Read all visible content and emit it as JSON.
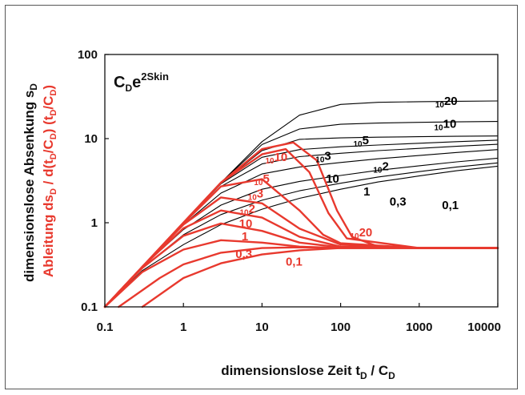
{
  "chart_data": {
    "type": "line",
    "title": "",
    "annotation": {
      "base": "C",
      "base_sub": "D",
      "exp_part": "e",
      "sup": "2Skin"
    },
    "xlabel": {
      "main": "dimensionslose Zeit t",
      "sub1": "D",
      "mid": " / C",
      "sub2": "D"
    },
    "ylabel": "dimensionslose Absenkung s",
    "ylabel_sub": "D",
    "ylabel2": {
      "part1": "Ableitung ds",
      "s1": "D",
      "part2": " / d(t",
      "s2": "D",
      "part3": "/C",
      "s3": "D",
      "part4": ")  (t",
      "s4": "D",
      "part5": "/C",
      "s5": "D",
      "part6": ")"
    },
    "x_scale": "log",
    "y_scale": "log",
    "xlim": [
      0.1,
      10000
    ],
    "ylim": [
      0.1,
      100
    ],
    "x_ticks": [
      "0.1",
      "1",
      "10",
      "100",
      "1000",
      "10000"
    ],
    "y_ticks": [
      "0.1",
      "1",
      "10",
      "100"
    ],
    "grid": false,
    "colors": {
      "pressure": "#000000",
      "derivative": "#e8392e"
    },
    "series_pressure": [
      {
        "label": "0,1",
        "label_parts": [
          "0,1"
        ],
        "label_at": [
          1950,
          1.45
        ],
        "points": [
          [
            0.1,
            0.1
          ],
          [
            0.3,
            0.27
          ],
          [
            1,
            0.55
          ],
          [
            3,
            0.95
          ],
          [
            10,
            1.45
          ],
          [
            30,
            1.95
          ],
          [
            100,
            2.5
          ],
          [
            300,
            3.05
          ],
          [
            1000,
            3.6
          ],
          [
            3000,
            4.15
          ],
          [
            10000,
            4.7
          ]
        ]
      },
      {
        "label": "0,3",
        "label_parts": [
          "0,3"
        ],
        "label_at": [
          420,
          1.6
        ],
        "points": [
          [
            0.1,
            0.1
          ],
          [
            0.3,
            0.29
          ],
          [
            1,
            0.72
          ],
          [
            3,
            1.25
          ],
          [
            10,
            1.85
          ],
          [
            30,
            2.4
          ],
          [
            100,
            2.95
          ],
          [
            300,
            3.5
          ],
          [
            1000,
            4.05
          ],
          [
            3000,
            4.6
          ],
          [
            10000,
            5.15
          ]
        ]
      },
      {
        "label": "1",
        "label_parts": [
          "1"
        ],
        "label_at": [
          195,
          2.1
        ],
        "points": [
          [
            0.1,
            0.1
          ],
          [
            0.3,
            0.3
          ],
          [
            1,
            0.83
          ],
          [
            3,
            1.62
          ],
          [
            10,
            2.5
          ],
          [
            30,
            3.1
          ],
          [
            100,
            3.65
          ],
          [
            300,
            4.2
          ],
          [
            1000,
            4.75
          ],
          [
            3000,
            5.3
          ],
          [
            10000,
            5.85
          ]
        ]
      },
      {
        "label": "10",
        "label_parts": [
          "10"
        ],
        "label_at": [
          65,
          3.0
        ],
        "points": [
          [
            0.1,
            0.1
          ],
          [
            0.3,
            0.3
          ],
          [
            1,
            0.95
          ],
          [
            3,
            2.25
          ],
          [
            10,
            3.8
          ],
          [
            30,
            4.6
          ],
          [
            100,
            5.2
          ],
          [
            300,
            5.75
          ],
          [
            1000,
            6.3
          ],
          [
            3000,
            6.85
          ],
          [
            10000,
            7.4
          ]
        ]
      },
      {
        "label": "10²",
        "label_parts": [
          "",
          "10",
          "2"
        ],
        "label_at": [
          260,
          4.2
        ],
        "points": [
          [
            0.1,
            0.1
          ],
          [
            0.3,
            0.3
          ],
          [
            1,
            0.98
          ],
          [
            3,
            2.7
          ],
          [
            10,
            5.0
          ],
          [
            30,
            6.1
          ],
          [
            100,
            6.7
          ],
          [
            300,
            7.2
          ],
          [
            1000,
            7.65
          ],
          [
            3000,
            8.1
          ],
          [
            10000,
            8.55
          ]
        ]
      },
      {
        "label": "10³",
        "label_parts": [
          "",
          "10",
          "3"
        ],
        "label_at": [
          48,
          5.6
        ],
        "points": [
          [
            0.1,
            0.1
          ],
          [
            0.3,
            0.3
          ],
          [
            1,
            0.99
          ],
          [
            3,
            2.9
          ],
          [
            10,
            6.0
          ],
          [
            30,
            7.4
          ],
          [
            100,
            8.0
          ],
          [
            300,
            8.4
          ],
          [
            1000,
            8.8
          ],
          [
            3000,
            9.2
          ],
          [
            10000,
            9.6
          ]
        ]
      },
      {
        "label": "10⁵",
        "label_parts": [
          "",
          "10",
          "5"
        ],
        "label_at": [
          145,
          8.6
        ],
        "points": [
          [
            0.1,
            0.1
          ],
          [
            0.3,
            0.3
          ],
          [
            1,
            1.0
          ],
          [
            3,
            2.95
          ],
          [
            10,
            7.2
          ],
          [
            30,
            9.8
          ],
          [
            100,
            10.2
          ],
          [
            300,
            10.4
          ],
          [
            1000,
            10.55
          ],
          [
            3000,
            10.65
          ],
          [
            10000,
            10.75
          ]
        ]
      },
      {
        "label": "10¹⁰",
        "label_parts": [
          "",
          "10",
          "10"
        ],
        "label_at": [
          1550,
          13.5
        ],
        "points": [
          [
            0.1,
            0.1
          ],
          [
            0.3,
            0.3
          ],
          [
            1,
            1.0
          ],
          [
            3,
            3.0
          ],
          [
            10,
            8.5
          ],
          [
            30,
            13.0
          ],
          [
            100,
            14.8
          ],
          [
            300,
            15.3
          ],
          [
            1000,
            15.6
          ],
          [
            3000,
            15.8
          ],
          [
            10000,
            16.0
          ]
        ]
      },
      {
        "label": "10²⁰",
        "label_parts": [
          "",
          "10",
          "20"
        ],
        "label_at": [
          1600,
          25.0
        ],
        "points": [
          [
            0.1,
            0.1
          ],
          [
            0.3,
            0.3
          ],
          [
            1,
            1.0
          ],
          [
            3,
            3.0
          ],
          [
            10,
            9.2
          ],
          [
            30,
            19.0
          ],
          [
            100,
            25.5
          ],
          [
            300,
            27.0
          ],
          [
            1000,
            27.5
          ],
          [
            3000,
            27.8
          ],
          [
            10000,
            28.0
          ]
        ]
      }
    ],
    "series_derivative": [
      {
        "label": "0,1",
        "label_parts": [
          "0,1"
        ],
        "label_at": [
          20,
          0.31
        ],
        "points": [
          [
            0.3,
            0.1
          ],
          [
            1,
            0.22
          ],
          [
            3,
            0.33
          ],
          [
            10,
            0.42
          ],
          [
            30,
            0.47
          ],
          [
            100,
            0.5
          ],
          [
            1000,
            0.5
          ],
          [
            10000,
            0.5
          ]
        ]
      },
      {
        "label": "0,3",
        "label_parts": [
          "0,3"
        ],
        "label_at": [
          4.6,
          0.38
        ],
        "points": [
          [
            0.15,
            0.1
          ],
          [
            0.5,
            0.22
          ],
          [
            1,
            0.32
          ],
          [
            3,
            0.44
          ],
          [
            10,
            0.5
          ],
          [
            30,
            0.51
          ],
          [
            100,
            0.5
          ],
          [
            1000,
            0.5
          ],
          [
            10000,
            0.5
          ]
        ]
      },
      {
        "label": "1",
        "label_parts": [
          "1"
        ],
        "label_at": [
          5.5,
          0.62
        ],
        "points": [
          [
            0.1,
            0.1
          ],
          [
            0.3,
            0.26
          ],
          [
            1,
            0.48
          ],
          [
            3,
            0.62
          ],
          [
            10,
            0.58
          ],
          [
            30,
            0.52
          ],
          [
            100,
            0.5
          ],
          [
            1000,
            0.5
          ],
          [
            10000,
            0.5
          ]
        ]
      },
      {
        "label": "10",
        "label_parts": [
          "10"
        ],
        "label_at": [
          5.1,
          0.88
        ],
        "points": [
          [
            0.1,
            0.1
          ],
          [
            0.3,
            0.29
          ],
          [
            1,
            0.7
          ],
          [
            3,
            0.98
          ],
          [
            10,
            0.8
          ],
          [
            30,
            0.58
          ],
          [
            100,
            0.51
          ],
          [
            1000,
            0.5
          ],
          [
            10000,
            0.5
          ]
        ]
      },
      {
        "label": "10²",
        "label_parts": [
          "",
          "10",
          "2"
        ],
        "label_at": [
          5.2,
          1.32
        ],
        "points": [
          [
            0.1,
            0.1
          ],
          [
            0.3,
            0.3
          ],
          [
            1,
            0.86
          ],
          [
            3,
            1.4
          ],
          [
            10,
            1.15
          ],
          [
            30,
            0.68
          ],
          [
            100,
            0.52
          ],
          [
            1000,
            0.5
          ],
          [
            10000,
            0.5
          ]
        ]
      },
      {
        "label": "10³",
        "label_parts": [
          "",
          "10",
          "3"
        ],
        "label_at": [
          6.6,
          2.0
        ],
        "points": [
          [
            0.1,
            0.1
          ],
          [
            0.3,
            0.3
          ],
          [
            1,
            0.95
          ],
          [
            3,
            2.0
          ],
          [
            10,
            1.7
          ],
          [
            30,
            0.85
          ],
          [
            100,
            0.55
          ],
          [
            1000,
            0.5
          ],
          [
            10000,
            0.5
          ]
        ]
      },
      {
        "label": "10⁵",
        "label_parts": [
          "",
          "10",
          "5"
        ],
        "label_at": [
          7.9,
          3.0
        ],
        "points": [
          [
            0.1,
            0.1
          ],
          [
            0.3,
            0.3
          ],
          [
            1,
            0.98
          ],
          [
            3,
            2.7
          ],
          [
            10,
            3.3
          ],
          [
            30,
            1.4
          ],
          [
            60,
            0.72
          ],
          [
            100,
            0.57
          ],
          [
            1000,
            0.5
          ],
          [
            10000,
            0.5
          ]
        ]
      },
      {
        "label": "10¹⁰",
        "label_parts": [
          "",
          "10",
          "10"
        ],
        "label_at": [
          11,
          5.4
        ],
        "points": [
          [
            0.1,
            0.1
          ],
          [
            0.3,
            0.3
          ],
          [
            1,
            1.0
          ],
          [
            3,
            3.0
          ],
          [
            10,
            6.5
          ],
          [
            20,
            7.5
          ],
          [
            40,
            4.0
          ],
          [
            70,
            1.3
          ],
          [
            120,
            0.65
          ],
          [
            1000,
            0.5
          ],
          [
            10000,
            0.5
          ]
        ]
      },
      {
        "label": "10²⁰",
        "label_parts": [
          "",
          "10",
          "20"
        ],
        "label_at": [
          132,
          0.69
        ],
        "points": [
          [
            0.1,
            0.1
          ],
          [
            0.3,
            0.3
          ],
          [
            1,
            1.0
          ],
          [
            3,
            3.0
          ],
          [
            10,
            7.5
          ],
          [
            25,
            9.0
          ],
          [
            50,
            5.5
          ],
          [
            90,
            1.4
          ],
          [
            140,
            0.68
          ],
          [
            300,
            0.52
          ],
          [
            1000,
            0.5
          ],
          [
            10000,
            0.5
          ]
        ]
      }
    ]
  }
}
